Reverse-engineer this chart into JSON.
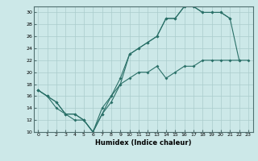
{
  "xlabel": "Humidex (Indice chaleur)",
  "bg_color": "#cce8e8",
  "line_color": "#2a7068",
  "grid_color": "#aacccc",
  "xlim": [
    -0.5,
    23.5
  ],
  "ylim": [
    10,
    31
  ],
  "xticks": [
    0,
    1,
    2,
    3,
    4,
    5,
    6,
    7,
    8,
    9,
    10,
    11,
    12,
    13,
    14,
    15,
    16,
    17,
    18,
    19,
    20,
    21,
    22,
    23
  ],
  "yticks": [
    10,
    12,
    14,
    16,
    18,
    20,
    22,
    24,
    26,
    28,
    30
  ],
  "line1_x": [
    0,
    1,
    2,
    3,
    4,
    5,
    6,
    7,
    8,
    9,
    10,
    11,
    12,
    13,
    14,
    15,
    16,
    17,
    18,
    19,
    20,
    21,
    22
  ],
  "line1_y": [
    17,
    16,
    15,
    13,
    13,
    12,
    10,
    13,
    16,
    18,
    23,
    24,
    25,
    26,
    29,
    29,
    31,
    31,
    30,
    30,
    30,
    29,
    22
  ],
  "line2_x": [
    0,
    1,
    2,
    3,
    4,
    5,
    6,
    7,
    8,
    9,
    10,
    11,
    12,
    13,
    14,
    15,
    16,
    17,
    18,
    19,
    20,
    21
  ],
  "line2_y": [
    17,
    16,
    15,
    13,
    13,
    12,
    10,
    14,
    16,
    19,
    23,
    24,
    25,
    26,
    29,
    29,
    31,
    31,
    30,
    30,
    30,
    29
  ],
  "line3_x": [
    0,
    1,
    2,
    3,
    4,
    5,
    6,
    7,
    8,
    9,
    10,
    11,
    12,
    13,
    14,
    15,
    16,
    17,
    18,
    19,
    20,
    21,
    22,
    23
  ],
  "line3_y": [
    17,
    16,
    14,
    13,
    12,
    12,
    10,
    13,
    15,
    18,
    19,
    20,
    20,
    21,
    19,
    20,
    21,
    21,
    22,
    22,
    22,
    22,
    22,
    22
  ],
  "xlabel_fontsize": 6,
  "tick_fontsize": 4.5,
  "lw": 0.8,
  "ms": 2.0
}
